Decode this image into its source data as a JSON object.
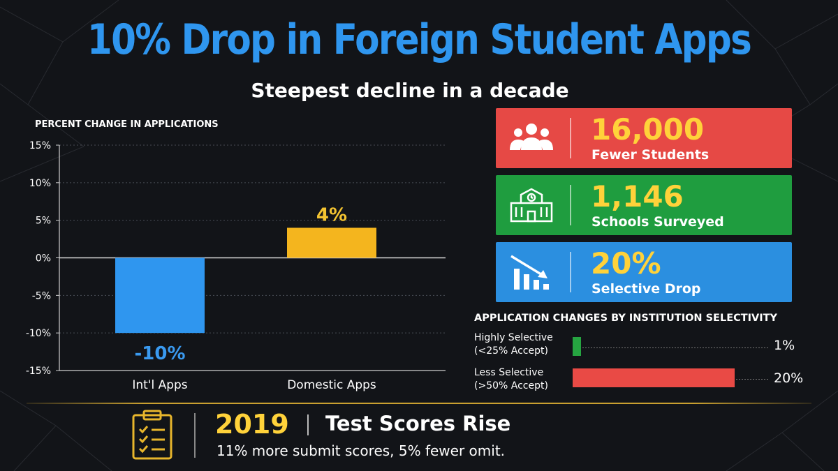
{
  "header": {
    "title": "10% Drop in Foreign Student Apps",
    "subtitle": "Steepest decline in a decade"
  },
  "chart_data": [
    {
      "type": "bar",
      "title": "PERCENT CHANGE IN APPLICATIONS",
      "categories": [
        "Int'l Apps",
        "Domestic Apps"
      ],
      "values": [
        -10,
        4
      ],
      "value_labels": [
        "-10%",
        "4%"
      ],
      "colors": [
        "#2f96ef",
        "#f4b51e"
      ],
      "value_label_colors": [
        "#3a9af0",
        "#f4c431"
      ],
      "yticks": [
        "15%",
        "10%",
        "5%",
        "0%",
        "-5%",
        "-10%",
        "-15%"
      ],
      "ytick_values": [
        15,
        10,
        5,
        0,
        -5,
        -10,
        -15
      ],
      "ylim": [
        -15,
        15
      ],
      "grid": true,
      "xlabel": "",
      "ylabel": ""
    },
    {
      "type": "bar",
      "orientation": "horizontal",
      "title": "APPLICATION CHANGES BY INSTITUTION SELECTIVITY",
      "categories": [
        "Highly Selective (<25% Accept)",
        "Less Selective (>50% Accept)"
      ],
      "category_lines": [
        [
          "Highly Selective",
          "(<25% Accept)"
        ],
        [
          "Less Selective",
          "(>50% Accept)"
        ]
      ],
      "values": [
        1,
        20
      ],
      "value_labels": [
        "1%",
        "20%"
      ],
      "colors": [
        "#26a541",
        "#e94a45"
      ]
    }
  ],
  "stats": [
    {
      "value": "16,000",
      "label": "Fewer Students",
      "icon": "people-icon",
      "color": "#e64945"
    },
    {
      "value": "1,146",
      "label": "Schools Surveyed",
      "icon": "school-building-icon",
      "color": "#1f9d3f"
    },
    {
      "value": "20%",
      "label": "Selective Drop",
      "icon": "declining-chart-icon",
      "color": "#2b8fe0"
    }
  ],
  "footer": {
    "icon": "clipboard-checklist-icon",
    "year": "2019",
    "headline": "Test Scores Rise",
    "description": "11% more submit scores, 5% fewer omit."
  },
  "colors": {
    "background": "#121418",
    "title_blue": "#2f96ef",
    "accent_yellow": "#ffd23a",
    "divider_gold": "#c9a030"
  }
}
